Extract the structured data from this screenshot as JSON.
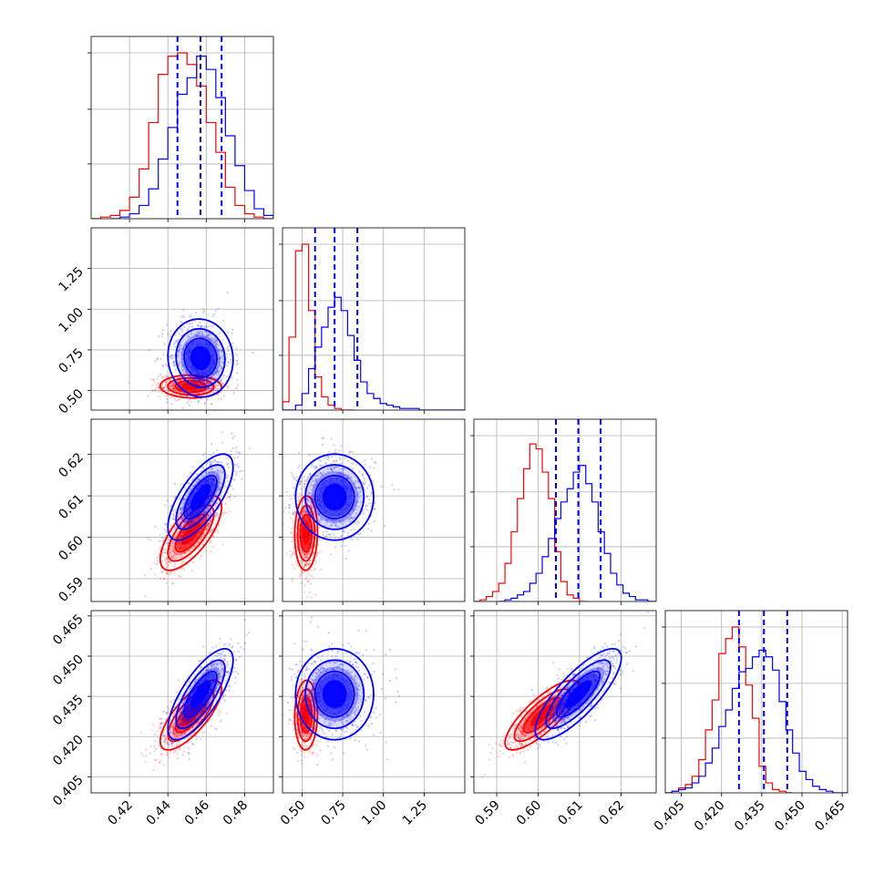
{
  "chart_data": {
    "type": "corner",
    "grid": true,
    "colors": {
      "series_1": "#ff0000",
      "series_2": "#0000ff",
      "quantile_lines": "#0000ff"
    },
    "parameters": [
      {
        "id": "p1",
        "range": [
          0.4,
          0.495
        ],
        "ticks": [
          0.42,
          0.44,
          0.46,
          0.48
        ],
        "tick_labels": [
          "0.42",
          "0.44",
          "0.46",
          "0.48"
        ],
        "quantiles": [
          0.445,
          0.457,
          0.468
        ]
      },
      {
        "id": "p2",
        "range": [
          0.38,
          1.5
        ],
        "ticks": [
          0.5,
          0.75,
          1.0,
          1.25
        ],
        "tick_labels": [
          "0.50",
          "0.75",
          "1.00",
          "1.25"
        ],
        "quantiles": [
          0.58,
          0.7,
          0.84
        ]
      },
      {
        "id": "p3",
        "range": [
          0.5845,
          0.6285
        ],
        "ticks": [
          0.59,
          0.6,
          0.61,
          0.62
        ],
        "tick_labels": [
          "0.59",
          "0.60",
          "0.61",
          "0.62"
        ],
        "quantiles": [
          0.6043,
          0.6097,
          0.6151
        ]
      },
      {
        "id": "p4",
        "range": [
          0.399,
          0.467
        ],
        "ticks": [
          0.405,
          0.42,
          0.435,
          0.45,
          0.465
        ],
        "tick_labels": [
          "0.405",
          "0.420",
          "0.435",
          "0.450",
          "0.465"
        ],
        "quantiles": [
          0.4265,
          0.4358,
          0.4445
        ]
      }
    ],
    "series": [
      {
        "color": "#ff0000",
        "means": [
          0.452,
          0.525,
          0.601,
          0.428
        ],
        "sds": [
          0.008,
          0.035,
          0.0045,
          0.0065
        ],
        "corr": [
          [
            1.0,
            -0.05,
            0.7,
            0.75
          ],
          [
            -0.05,
            1.0,
            0.05,
            0.05
          ],
          [
            0.7,
            0.05,
            1.0,
            0.8
          ],
          [
            0.75,
            0.05,
            0.8,
            1.0
          ]
        ],
        "histograms": [
          {
            "edges": [
              0.4,
              0.405,
              0.41,
              0.415,
              0.42,
              0.425,
              0.43,
              0.435,
              0.44,
              0.445,
              0.45,
              0.455,
              0.46,
              0.465,
              0.47,
              0.475,
              0.48,
              0.485,
              0.49,
              0.495
            ],
            "counts": [
              0.0,
              0.01,
              0.02,
              0.05,
              0.13,
              0.3,
              0.58,
              0.87,
              0.98,
              1.0,
              0.93,
              0.8,
              0.58,
              0.4,
              0.19,
              0.08,
              0.03,
              0.01,
              0.0
            ]
          },
          {
            "edges": [
              0.38,
              0.42,
              0.46,
              0.5,
              0.54,
              0.58,
              0.62,
              0.66,
              0.7,
              0.74,
              0.78,
              0.82
            ],
            "counts": [
              0.05,
              0.44,
              0.96,
              1.0,
              0.6,
              0.2,
              0.08,
              0.03,
              0.01,
              0.0,
              0.0
            ]
          },
          {
            "edges": [
              0.5845,
              0.586,
              0.5875,
              0.589,
              0.5905,
              0.592,
              0.5935,
              0.595,
              0.5965,
              0.598,
              0.5995,
              0.601,
              0.6025,
              0.604,
              0.6055,
              0.607,
              0.6085,
              0.61,
              0.6115
            ],
            "counts": [
              0.0,
              0.01,
              0.03,
              0.06,
              0.11,
              0.23,
              0.42,
              0.62,
              0.8,
              0.95,
              0.92,
              0.78,
              0.62,
              0.3,
              0.12,
              0.04,
              0.02,
              0.0
            ]
          },
          {
            "edges": [
              0.399,
              0.4015,
              0.404,
              0.4065,
              0.409,
              0.4115,
              0.414,
              0.4165,
              0.419,
              0.4215,
              0.424,
              0.4265,
              0.429,
              0.4315,
              0.434,
              0.4365,
              0.439,
              0.4415,
              0.444,
              0.4465
            ],
            "counts": [
              0.0,
              0.01,
              0.03,
              0.05,
              0.1,
              0.2,
              0.38,
              0.56,
              0.84,
              0.93,
              1.0,
              0.88,
              0.65,
              0.45,
              0.16,
              0.06,
              0.02,
              0.01,
              0.0
            ]
          }
        ]
      },
      {
        "color": "#0000ff",
        "means": [
          0.457,
          0.7,
          0.6097,
          0.4358
        ],
        "sds": [
          0.0085,
          0.12,
          0.0052,
          0.0085
        ],
        "corr": [
          [
            1.0,
            -0.05,
            0.7,
            0.75
          ],
          [
            -0.05,
            1.0,
            0.0,
            0.0
          ],
          [
            0.7,
            0.0,
            1.0,
            0.8
          ],
          [
            0.75,
            0.0,
            0.8,
            1.0
          ]
        ],
        "histograms": [
          {
            "edges": [
              0.41,
              0.415,
              0.42,
              0.425,
              0.43,
              0.435,
              0.44,
              0.445,
              0.45,
              0.455,
              0.46,
              0.465,
              0.47,
              0.475,
              0.48,
              0.485,
              0.49,
              0.495
            ],
            "counts": [
              0.0,
              0.01,
              0.03,
              0.08,
              0.18,
              0.36,
              0.55,
              0.75,
              0.85,
              0.98,
              0.9,
              0.73,
              0.5,
              0.32,
              0.17,
              0.06,
              0.02
            ]
          },
          {
            "edges": [
              0.38,
              0.42,
              0.46,
              0.5,
              0.54,
              0.58,
              0.62,
              0.66,
              0.7,
              0.74,
              0.78,
              0.82,
              0.86,
              0.9,
              0.94,
              0.98,
              1.02,
              1.06,
              1.1,
              1.14,
              1.18,
              1.22,
              1.26,
              1.3,
              1.34,
              1.38,
              1.42,
              1.46,
              1.5
            ],
            "counts": [
              0.0,
              0.0,
              0.03,
              0.1,
              0.25,
              0.38,
              0.5,
              0.62,
              0.68,
              0.6,
              0.45,
              0.3,
              0.17,
              0.1,
              0.07,
              0.04,
              0.03,
              0.02,
              0.01,
              0.01,
              0.01,
              0.0,
              0.0,
              0.0,
              0.0,
              0.0,
              0.0,
              0.0
            ]
          },
          {
            "edges": [
              0.5905,
              0.592,
              0.5935,
              0.595,
              0.5965,
              0.598,
              0.5995,
              0.601,
              0.6025,
              0.604,
              0.6055,
              0.607,
              0.6085,
              0.61,
              0.6115,
              0.613,
              0.6145,
              0.616,
              0.6175,
              0.619,
              0.6205,
              0.622,
              0.6235,
              0.625,
              0.6265,
              0.6285
            ],
            "counts": [
              0.0,
              0.01,
              0.02,
              0.04,
              0.06,
              0.11,
              0.17,
              0.27,
              0.38,
              0.5,
              0.6,
              0.68,
              0.78,
              0.82,
              0.71,
              0.6,
              0.42,
              0.29,
              0.17,
              0.1,
              0.05,
              0.03,
              0.01,
              0.01,
              0.0
            ]
          },
          {
            "edges": [
              0.399,
              0.4015,
              0.404,
              0.4065,
              0.409,
              0.4115,
              0.414,
              0.4165,
              0.419,
              0.4215,
              0.424,
              0.4265,
              0.429,
              0.4315,
              0.434,
              0.4365,
              0.439,
              0.4415,
              0.444,
              0.4465,
              0.449,
              0.4515,
              0.454,
              0.4565,
              0.459,
              0.4615,
              0.464,
              0.467
            ],
            "counts": [
              0.0,
              0.01,
              0.02,
              0.03,
              0.06,
              0.1,
              0.18,
              0.27,
              0.4,
              0.5,
              0.63,
              0.73,
              0.75,
              0.82,
              0.86,
              0.82,
              0.74,
              0.55,
              0.38,
              0.24,
              0.13,
              0.08,
              0.04,
              0.02,
              0.01,
              0.0,
              0.0
            ]
          }
        ]
      }
    ]
  }
}
